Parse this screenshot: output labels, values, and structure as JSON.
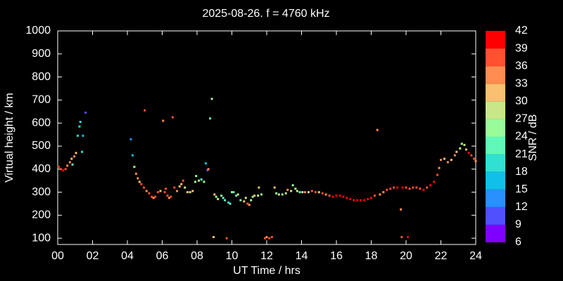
{
  "chart_data": {
    "type": "scatter",
    "title": "2025-08-26. f = 4760 kHz",
    "xlabel": "UT Time / hrs",
    "ylabel": "Virtual height / km",
    "xlim": [
      0,
      24
    ],
    "ylim": [
      73,
      1000
    ],
    "xticks": [
      {
        "value": 0,
        "label": "00"
      },
      {
        "value": 2,
        "label": "02"
      },
      {
        "value": 4,
        "label": "04"
      },
      {
        "value": 6,
        "label": "06"
      },
      {
        "value": 8,
        "label": "08"
      },
      10,
      12,
      14,
      16,
      18,
      20,
      22,
      24
    ],
    "yticks": [
      100,
      200,
      300,
      400,
      500,
      600,
      700,
      800,
      900,
      1000
    ],
    "colorbar": {
      "label": "SNR / dB",
      "ticks": [
        6,
        9,
        12,
        15,
        18,
        21,
        24,
        27,
        30,
        33,
        36,
        39,
        42
      ],
      "colors": [
        "#8000ff",
        "#5050ff",
        "#2890ff",
        "#10c0e8",
        "#30e0d0",
        "#60f8b8",
        "#98fc98",
        "#c8e888",
        "#f8c070",
        "#ff8c50",
        "#ff5030",
        "#ff0000"
      ]
    },
    "series": [
      {
        "x": [
          0.05,
          0.15,
          0.3,
          0.45,
          0.55,
          0.7,
          0.8,
          0.95,
          1.05,
          0.85,
          1.15,
          1.25,
          1.3,
          1.4,
          1.45,
          1.6,
          4.2,
          4.3,
          4.4,
          4.5,
          4.6,
          4.7,
          4.8,
          4.95,
          5.0,
          5.1,
          5.25,
          5.4,
          5.5,
          5.6,
          5.75,
          5.9,
          6.05,
          6.15,
          6.2,
          6.3,
          6.4,
          6.5,
          6.6,
          6.7,
          6.85,
          7.0,
          7.1,
          7.2,
          7.3,
          7.45,
          7.6,
          7.75,
          7.9,
          7.95,
          8.1,
          8.25,
          8.4,
          8.5,
          8.6,
          8.65,
          8.75,
          8.85,
          8.95,
          9.0,
          9.1,
          9.2,
          9.4,
          9.5,
          9.6,
          9.7,
          9.8,
          9.9,
          10.0,
          10.1,
          10.25,
          10.35,
          10.5,
          10.7,
          10.8,
          10.9,
          11.0,
          11.1,
          11.2,
          11.3,
          11.5,
          11.55,
          11.7,
          11.9,
          12.0,
          12.15,
          12.3,
          12.45,
          12.55,
          12.7,
          12.9,
          13.1,
          13.2,
          13.4,
          13.5,
          13.65,
          13.75,
          13.9,
          14.05,
          14.2,
          14.4,
          14.6,
          14.8,
          15.0,
          15.2,
          15.4,
          15.6,
          15.8,
          16.0,
          16.2,
          16.4,
          16.6,
          16.8,
          17.0,
          17.2,
          17.4,
          17.6,
          17.8,
          18.0,
          18.2,
          18.35,
          18.5,
          18.7,
          18.9,
          19.1,
          19.3,
          19.5,
          19.7,
          19.75,
          19.8,
          20.0,
          20.1,
          20.2,
          20.4,
          20.6,
          20.8,
          21.0,
          21.2,
          21.4,
          21.6,
          21.8,
          21.9,
          22.0,
          22.2,
          22.4,
          22.6,
          22.8,
          22.9,
          23.1,
          23.2,
          23.35,
          23.45,
          23.6,
          23.75,
          23.9,
          24.0
        ],
        "values": [
          410,
          400,
          395,
          400,
          415,
          430,
          445,
          455,
          470,
          420,
          545,
          585,
          605,
          475,
          545,
          645,
          530,
          460,
          410,
          380,
          360,
          345,
          335,
          320,
          655,
          305,
          295,
          280,
          275,
          280,
          300,
          305,
          610,
          300,
          315,
          285,
          275,
          280,
          625,
          320,
          305,
          325,
          335,
          350,
          320,
          300,
          300,
          305,
          345,
          370,
          350,
          355,
          345,
          425,
          395,
          400,
          620,
          705,
          105,
          290,
          280,
          270,
          285,
          275,
          265,
          100,
          255,
          250,
          300,
          300,
          285,
          290,
          265,
          260,
          275,
          250,
          245,
          265,
          280,
          285,
          285,
          320,
          290,
          100,
          105,
          100,
          105,
          320,
          295,
          290,
          290,
          295,
          310,
          305,
          330,
          315,
          305,
          300,
          300,
          300,
          300,
          305,
          300,
          300,
          295,
          290,
          285,
          280,
          285,
          285,
          280,
          275,
          270,
          265,
          265,
          265,
          265,
          270,
          275,
          285,
          570,
          290,
          300,
          310,
          315,
          320,
          320,
          225,
          105,
          320,
          320,
          105,
          315,
          320,
          320,
          315,
          310,
          320,
          330,
          345,
          375,
          405,
          440,
          445,
          430,
          440,
          460,
          475,
          490,
          510,
          505,
          485,
          470,
          460,
          445,
          435
        ],
        "snr": [
          36,
          36,
          39,
          36,
          33,
          33,
          30,
          33,
          30,
          21,
          18,
          18,
          18,
          18,
          15,
          9,
          12,
          15,
          24,
          33,
          33,
          30,
          36,
          36,
          36,
          33,
          36,
          36,
          33,
          36,
          36,
          30,
          33,
          36,
          36,
          36,
          33,
          36,
          36,
          36,
          33,
          30,
          30,
          36,
          27,
          30,
          27,
          30,
          24,
          24,
          27,
          21,
          24,
          15,
          9,
          33,
          21,
          24,
          30,
          30,
          24,
          27,
          24,
          21,
          21,
          36,
          18,
          21,
          24,
          21,
          21,
          27,
          24,
          30,
          27,
          36,
          33,
          24,
          24,
          30,
          27,
          30,
          24,
          36,
          33,
          36,
          36,
          30,
          24,
          27,
          24,
          27,
          33,
          27,
          24,
          24,
          27,
          21,
          27,
          33,
          27,
          36,
          36,
          30,
          36,
          33,
          36,
          39,
          39,
          39,
          39,
          39,
          39,
          42,
          42,
          42,
          42,
          39,
          39,
          36,
          33,
          33,
          33,
          36,
          36,
          36,
          39,
          33,
          36,
          39,
          36,
          39,
          36,
          36,
          36,
          36,
          39,
          36,
          39,
          39,
          36,
          33,
          33,
          30,
          33,
          30,
          33,
          30,
          27,
          24,
          27,
          30,
          39,
          36,
          36,
          33
        ]
      }
    ]
  }
}
